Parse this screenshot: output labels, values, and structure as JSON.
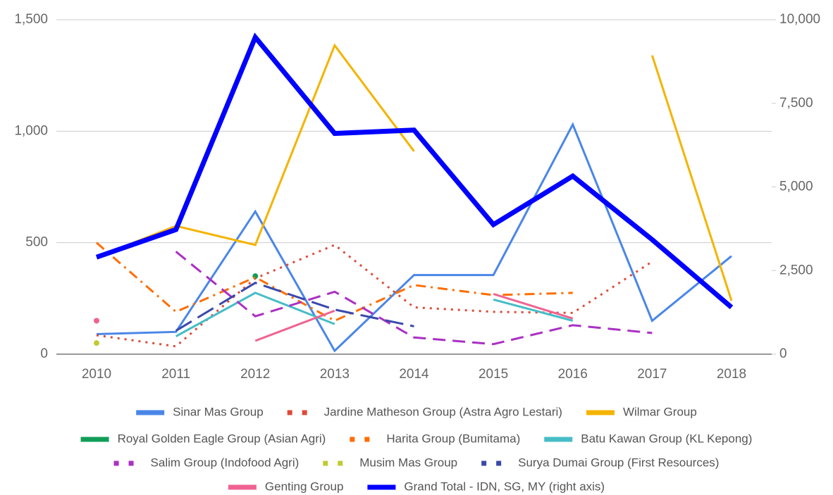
{
  "chart_data": {
    "type": "line",
    "categories": [
      "2010",
      "2011",
      "2012",
      "2013",
      "2014",
      "2015",
      "2016",
      "2017",
      "2018"
    ],
    "ylim": [
      0,
      1500
    ],
    "yticks": [
      0,
      500,
      {
        "value": 1000,
        "label": "1,000"
      },
      {
        "value": 1500,
        "label": "1,500"
      }
    ],
    "y2lim": [
      0,
      10000
    ],
    "y2ticks": [
      0,
      {
        "value": 2500,
        "label": "2,500"
      },
      {
        "value": 5000,
        "label": "5,000"
      },
      {
        "value": 7500,
        "label": "7,500"
      },
      {
        "value": 10000,
        "label": "10,000"
      }
    ],
    "grid": true,
    "legend": "bottom",
    "series": [
      {
        "name": "Sinar Mas Group",
        "color": "#4a86e8",
        "dash": "solid",
        "values": [
          90,
          100,
          640,
          15,
          355,
          355,
          1030,
          150,
          440
        ]
      },
      {
        "name": "Jardine Matheson Group (Astra Agro Lestari)",
        "color": "#dd4b39",
        "dash": "dotted",
        "values": [
          85,
          35,
          340,
          490,
          210,
          190,
          185,
          415,
          null
        ]
      },
      {
        "name": "Wilmar Group",
        "color": "#f4b400",
        "dash": "solid",
        "values": [
          435,
          575,
          490,
          1385,
          910,
          null,
          null,
          1340,
          240
        ]
      },
      {
        "name": "Royal Golden Eagle Group (Asian Agri)",
        "color": "#0f9d58",
        "dash": "solid",
        "values": [
          null,
          null,
          350,
          null,
          null,
          null,
          null,
          null,
          null
        ]
      },
      {
        "name": "Harita Group (Bumitama)",
        "color": "#ff6d00",
        "dash": "dashdot",
        "values": [
          500,
          190,
          345,
          150,
          310,
          265,
          275,
          null,
          null
        ]
      },
      {
        "name": "Batu Kawan Group (KL Kepong)",
        "color": "#46bdc6",
        "dash": "solid",
        "values": [
          null,
          80,
          275,
          135,
          null,
          245,
          150,
          null,
          null
        ]
      },
      {
        "name": "Salim Group (Indofood Agri)",
        "color": "#ab30c4",
        "dash": "dashed",
        "values": [
          null,
          460,
          170,
          280,
          75,
          45,
          130,
          95,
          null
        ]
      },
      {
        "name": "Musim Mas Group",
        "color": "#c0ca33",
        "dash": "dotted",
        "values": [
          50,
          null,
          null,
          null,
          null,
          null,
          null,
          null,
          null
        ]
      },
      {
        "name": "Surya Dumai Group (First Resources)",
        "color": "#3949ab",
        "dash": "longdash",
        "values": [
          null,
          105,
          320,
          200,
          125,
          null,
          null,
          null,
          null
        ]
      },
      {
        "name": "Genting Group",
        "color": "#f06292",
        "dash": "solid",
        "values": [
          150,
          null,
          60,
          195,
          null,
          270,
          160,
          null,
          null
        ]
      },
      {
        "name": "Grand Total - IDN, SG, MY (right axis)",
        "color": "#0000ff",
        "dash": "solid",
        "axis": "y2",
        "values": [
          2900,
          3725,
          9475,
          6600,
          6700,
          3875,
          5325,
          3425,
          1400
        ]
      }
    ]
  }
}
